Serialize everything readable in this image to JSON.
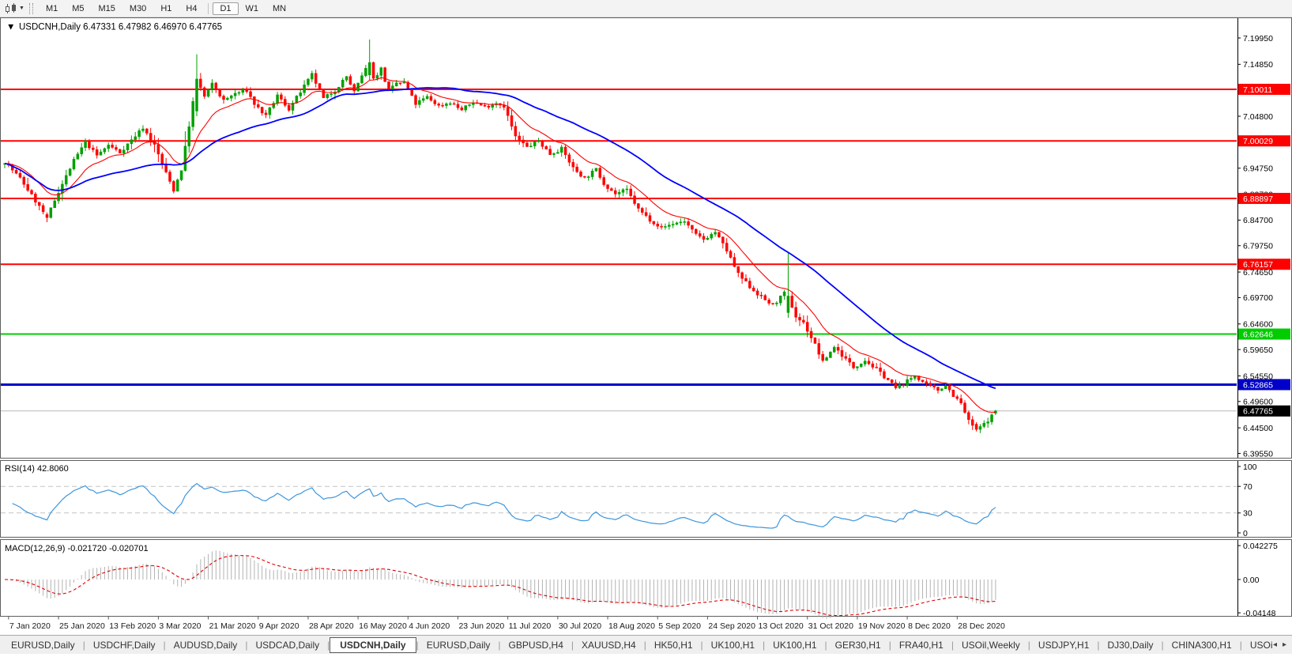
{
  "toolbar": {
    "timeframe_groups": [
      [
        "M1",
        "M5",
        "M15",
        "M30",
        "H1",
        "H4"
      ],
      [
        "D1",
        "W1",
        "MN"
      ]
    ],
    "active_timeframe": "D1"
  },
  "chart": {
    "title_text": "USDCNH,Daily 6.47331 6.47982 6.46970 6.47765"
  },
  "chart_data": {
    "type": "candlestick",
    "symbol": "USDCNH",
    "timeframe": "Daily",
    "ohlc": {
      "open": 6.47331,
      "high": 6.47982,
      "low": 6.4697,
      "close": 6.47765
    },
    "y_axis_ticks": [
      "7.19950",
      "7.14850",
      "7.09850",
      "7.04800",
      "6.99750",
      "6.94750",
      "6.89700",
      "6.84700",
      "6.79750",
      "6.74650",
      "6.69700",
      "6.64600",
      "6.59650",
      "6.54550",
      "6.49600",
      "6.44500",
      "6.39550"
    ],
    "x_axis_dates": [
      "7 Jan 2020",
      "25 Jan 2020",
      "13 Feb 2020",
      "3 Mar 2020",
      "21 Mar 2020",
      "9 Apr 2020",
      "28 Apr 2020",
      "16 May 2020",
      "4 Jun 2020",
      "23 Jun 2020",
      "11 Jul 2020",
      "30 Jul 2020",
      "18 Aug 2020",
      "5 Sep 2020",
      "24 Sep 2020",
      "13 Oct 2020",
      "31 Oct 2020",
      "19 Nov 2020",
      "8 Dec 2020",
      "28 Dec 2020"
    ],
    "levels": [
      {
        "price": 7.10011,
        "label": "7.10011",
        "color": "#ff0000",
        "width": 2,
        "kind": "resistance"
      },
      {
        "price": 7.00029,
        "label": "7.00029",
        "color": "#ff0000",
        "width": 2,
        "kind": "resistance"
      },
      {
        "price": 6.88897,
        "label": "6.88897",
        "color": "#ff0000",
        "width": 2,
        "kind": "resistance"
      },
      {
        "price": 6.76157,
        "label": "6.76157",
        "color": "#ff0000",
        "width": 2,
        "kind": "resistance"
      },
      {
        "price": 6.62646,
        "label": "6.62646",
        "color": "#00cc00",
        "width": 2,
        "kind": "support"
      },
      {
        "price": 6.52865,
        "label": "6.52865",
        "color": "#0000c8",
        "width": 3,
        "kind": "support"
      },
      {
        "price": 6.47765,
        "label": "6.47765",
        "color": "#000000",
        "width": 1,
        "kind": "current-price",
        "line_color": "#b8b8b8"
      }
    ],
    "candles": {
      "count": 259,
      "up_color": "#00a000",
      "down_color": "#ff0000",
      "close_anchors": [
        [
          0,
          6.96
        ],
        [
          4,
          6.928
        ],
        [
          8,
          6.884
        ],
        [
          11,
          6.852
        ],
        [
          14,
          6.902
        ],
        [
          18,
          6.962
        ],
        [
          21,
          6.998
        ],
        [
          24,
          6.972
        ],
        [
          27,
          6.992
        ],
        [
          30,
          6.978
        ],
        [
          33,
          7.002
        ],
        [
          36,
          7.026
        ],
        [
          39,
          6.992
        ],
        [
          42,
          6.938
        ],
        [
          44,
          6.905
        ],
        [
          46,
          6.945
        ],
        [
          48,
          7.03
        ],
        [
          50,
          7.12
        ],
        [
          52,
          7.086
        ],
        [
          54,
          7.11
        ],
        [
          57,
          7.078
        ],
        [
          60,
          7.092
        ],
        [
          63,
          7.098
        ],
        [
          65,
          7.072
        ],
        [
          68,
          7.048
        ],
        [
          71,
          7.088
        ],
        [
          74,
          7.062
        ],
        [
          77,
          7.095
        ],
        [
          80,
          7.128
        ],
        [
          83,
          7.082
        ],
        [
          86,
          7.098
        ],
        [
          89,
          7.125
        ],
        [
          91,
          7.095
        ],
        [
          93,
          7.125
        ],
        [
          95,
          7.152
        ],
        [
          96,
          7.12
        ],
        [
          98,
          7.14
        ],
        [
          100,
          7.095
        ],
        [
          102,
          7.112
        ],
        [
          104,
          7.112
        ],
        [
          107,
          7.072
        ],
        [
          110,
          7.085
        ],
        [
          113,
          7.068
        ],
        [
          116,
          7.075
        ],
        [
          119,
          7.06
        ],
        [
          122,
          7.076
        ],
        [
          125,
          7.066
        ],
        [
          128,
          7.074
        ],
        [
          130,
          7.068
        ],
        [
          133,
          7.008
        ],
        [
          136,
          6.988
        ],
        [
          139,
          7.0
        ],
        [
          142,
          6.975
        ],
        [
          145,
          6.985
        ],
        [
          148,
          6.948
        ],
        [
          151,
          6.928
        ],
        [
          154,
          6.945
        ],
        [
          156,
          6.918
        ],
        [
          159,
          6.898
        ],
        [
          162,
          6.905
        ],
        [
          165,
          6.868
        ],
        [
          168,
          6.848
        ],
        [
          171,
          6.832
        ],
        [
          174,
          6.84
        ],
        [
          177,
          6.845
        ],
        [
          180,
          6.818
        ],
        [
          182,
          6.81
        ],
        [
          185,
          6.824
        ],
        [
          188,
          6.788
        ],
        [
          191,
          6.742
        ],
        [
          194,
          6.718
        ],
        [
          197,
          6.698
        ],
        [
          200,
          6.682
        ],
        [
          203,
          6.705
        ],
        [
          204,
          6.7
        ],
        [
          206,
          6.66
        ],
        [
          208,
          6.648
        ],
        [
          211,
          6.606
        ],
        [
          213,
          6.572
        ],
        [
          216,
          6.602
        ],
        [
          219,
          6.578
        ],
        [
          221,
          6.562
        ],
        [
          224,
          6.576
        ],
        [
          227,
          6.558
        ],
        [
          230,
          6.538
        ],
        [
          232,
          6.522
        ],
        [
          234,
          6.53
        ],
        [
          237,
          6.546
        ],
        [
          240,
          6.528
        ],
        [
          243,
          6.518
        ],
        [
          245,
          6.528
        ],
        [
          247,
          6.508
        ],
        [
          249,
          6.492
        ],
        [
          251,
          6.458
        ],
        [
          253,
          6.442
        ],
        [
          255,
          6.452
        ],
        [
          257,
          6.468
        ],
        [
          258,
          6.4777
        ]
      ],
      "overrides": [
        {
          "i": 11,
          "o": 6.858,
          "h": 6.862,
          "l": 6.843,
          "c": 6.852
        },
        {
          "i": 50,
          "o": 7.058,
          "h": 7.168,
          "l": 7.048,
          "c": 7.12
        },
        {
          "i": 95,
          "o": 7.128,
          "h": 7.1965,
          "l": 7.118,
          "c": 7.152
        },
        {
          "i": 204,
          "o": 6.668,
          "h": 6.784,
          "l": 6.658,
          "c": 6.7
        },
        {
          "i": 253,
          "o": 6.452,
          "h": 6.456,
          "l": 6.438,
          "c": 6.442
        },
        {
          "i": 258,
          "o": 6.47331,
          "h": 6.47982,
          "l": 6.4697,
          "c": 6.47765
        }
      ]
    },
    "moving_averages": [
      {
        "type": "ema",
        "period": 13,
        "color": "#ff0000"
      },
      {
        "type": "sma",
        "period": 40,
        "color": "#0000ff"
      }
    ],
    "indicators": [
      {
        "name": "RSI",
        "params": "14",
        "value": 42.806,
        "label": "RSI(14) 42.8060",
        "range": [
          0,
          100
        ],
        "levels": [
          70,
          30
        ],
        "axis_labels": [
          "100",
          "70",
          "30",
          "0"
        ],
        "axis_values": [
          100,
          70,
          30,
          0
        ],
        "line_color": "#3d96dd"
      },
      {
        "name": "MACD",
        "params": "12,26,9",
        "macd": -0.02172,
        "signal": -0.020701,
        "label": "MACD(12,26,9) -0.021720 -0.020701",
        "axis_labels": [
          "0.042275",
          "0.00",
          "-0.04148"
        ],
        "axis_values": [
          0.042275,
          0,
          -0.04148
        ],
        "hist_color": "#b2b2b2",
        "signal_color": "#e00000"
      }
    ]
  },
  "tabs": {
    "items": [
      "EURUSD,Daily",
      "USDCHF,Daily",
      "AUDUSD,Daily",
      "USDCAD,Daily",
      "USDCNH,Daily",
      "EURUSD,Daily",
      "GBPUSD,H4",
      "XAUUSD,H4",
      "HK50,H1",
      "UK100,H1",
      "UK100,H1",
      "GER30,H1",
      "FRA40,H1",
      "USOil,Weekly",
      "USDJPY,H1",
      "DJ30,Daily",
      "CHINA300,H1",
      "USOil,"
    ],
    "active_index": 4
  }
}
